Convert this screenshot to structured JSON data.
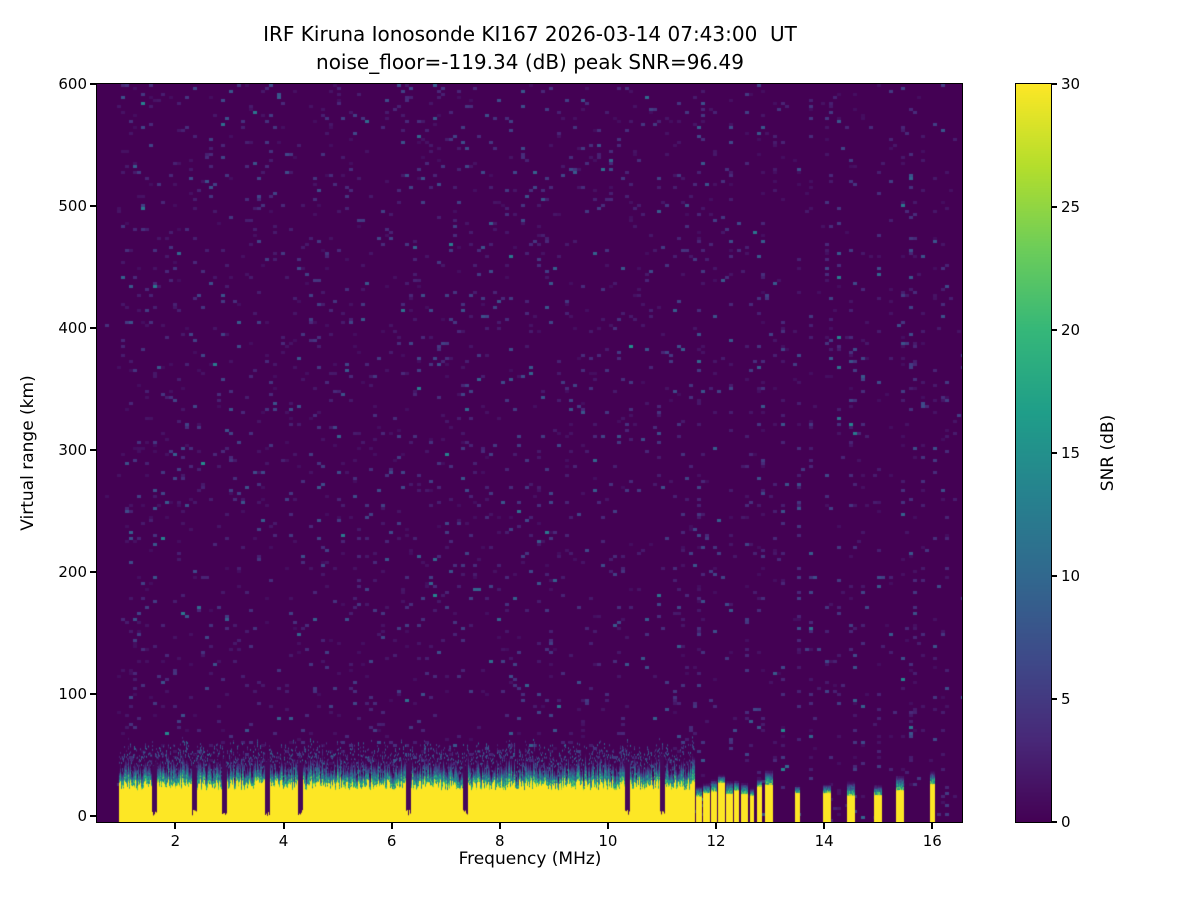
{
  "figure": {
    "background": "#ffffff"
  },
  "chart_data": {
    "type": "heatmap",
    "title": "IRF Kiruna Ionosonde KI167 2026-03-14 07:43:00  UT",
    "subtitle": "noise_floor=-119.34 (dB) peak SNR=96.49",
    "station": "IRF Kiruna Ionosonde",
    "station_id": "KI167",
    "timestamp_ut": "2026-03-14 07:43:00 UT",
    "noise_floor_db": -119.34,
    "peak_snr_db": 96.49,
    "xlabel": "Frequency (MHz)",
    "ylabel": "Virtual range (km)",
    "colorbar_label": "SNR (dB)",
    "colormap": "viridis",
    "xlim": [
      0.55,
      16.55
    ],
    "ylim": [
      -5,
      600
    ],
    "clim": [
      0,
      30
    ],
    "xticks": [
      2,
      4,
      6,
      8,
      10,
      12,
      14,
      16
    ],
    "yticks": [
      0,
      100,
      200,
      300,
      400,
      500,
      600
    ],
    "colorbar_ticks": [
      0,
      5,
      10,
      15,
      20,
      25,
      30
    ],
    "features": {
      "background_snr_db": 0,
      "speckle_noise_db_range": [
        1,
        12
      ],
      "ground_echo": {
        "freq_start_mhz": 0.95,
        "freq_end_mhz": 11.6,
        "core_top_km_range": [
          21,
          30
        ],
        "fringe_top_km_range": [
          30,
          45
        ],
        "peak_snr_db": 30,
        "notch_freqs_mhz": [
          1.6,
          2.35,
          2.9,
          3.7,
          4.3,
          6.3,
          7.35,
          10.35,
          11.0
        ]
      },
      "echo_bar_freqs_mhz": [
        11.68,
        11.82,
        11.96,
        12.1,
        12.24,
        12.38,
        12.52,
        12.66,
        12.8,
        12.97,
        13.5,
        14.05,
        14.5,
        15.0,
        15.4,
        16.0
      ],
      "noise_stripe_freqs_mhz": [
        11.68,
        11.96,
        12.24,
        12.52,
        12.8,
        13.05,
        13.2,
        13.5,
        13.7,
        14.05,
        14.25,
        14.5,
        14.7,
        15.0,
        15.2,
        15.4,
        15.6,
        15.8,
        16.0,
        16.2
      ]
    }
  }
}
